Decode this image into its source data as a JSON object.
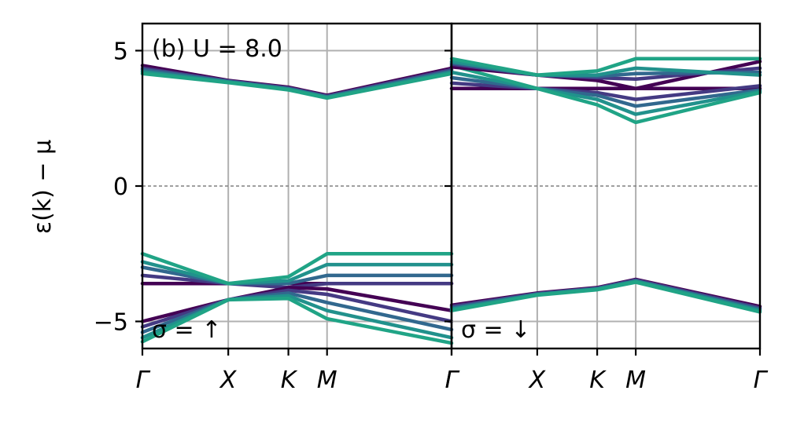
{
  "chart_data": {
    "type": "line",
    "ylabel": "ε(k) − μ",
    "ylim": [
      -6,
      6
    ],
    "yticks": [
      {
        "value": 5,
        "label": "5"
      },
      {
        "value": 0,
        "label": "0"
      },
      {
        "value": -5,
        "label": "−5"
      }
    ],
    "xticks": [
      {
        "value": 0,
        "label": "Γ"
      },
      {
        "value": 1,
        "label": "X"
      },
      {
        "value": 1.7,
        "label": "K"
      },
      {
        "value": 2.15,
        "label": "M"
      },
      {
        "value": 3.6,
        "label": "Γ"
      }
    ],
    "xlim": [
      0,
      3.6
    ],
    "grid": true,
    "zero_line": true,
    "colors": [
      "#440154",
      "#443a83",
      "#31688e",
      "#21918c",
      "#20a486"
    ],
    "panels": [
      {
        "id": "spin-up",
        "title": "(b) U = 8.0",
        "annotation": "σ = ↑",
        "series": [
          {
            "x": [
              0,
              1,
              1.7,
              2.15,
              3.6
            ],
            "y": [
              4.45,
              3.9,
              3.65,
              3.35,
              4.35
            ]
          },
          {
            "x": [
              0,
              1,
              1.7,
              2.15,
              3.6
            ],
            "y": [
              4.35,
              3.88,
              3.62,
              3.32,
              4.3
            ]
          },
          {
            "x": [
              0,
              1,
              1.7,
              2.15,
              3.6
            ],
            "y": [
              4.3,
              3.86,
              3.6,
              3.3,
              4.25
            ]
          },
          {
            "x": [
              0,
              1,
              1.7,
              2.15,
              3.6
            ],
            "y": [
              4.22,
              3.84,
              3.57,
              3.27,
              4.2
            ]
          },
          {
            "x": [
              0,
              1,
              1.7,
              2.15,
              3.6
            ],
            "y": [
              4.15,
              3.82,
              3.55,
              3.25,
              4.15
            ]
          },
          {
            "x": [
              0,
              1,
              1.7,
              2.15,
              3.6
            ],
            "y": [
              -3.6,
              -3.6,
              -3.6,
              -3.6,
              -3.6
            ]
          },
          {
            "x": [
              0,
              1,
              1.7,
              2.15,
              3.6
            ],
            "y": [
              -3.3,
              -3.6,
              -3.75,
              -3.6,
              -3.6
            ]
          },
          {
            "x": [
              0,
              1,
              1.7,
              2.15,
              3.6
            ],
            "y": [
              -3.0,
              -3.6,
              -3.6,
              -3.3,
              -3.3
            ]
          },
          {
            "x": [
              0,
              1,
              1.7,
              2.15,
              3.6
            ],
            "y": [
              -2.8,
              -3.6,
              -3.5,
              -2.9,
              -2.9
            ]
          },
          {
            "x": [
              0,
              1,
              1.7,
              2.15,
              3.6
            ],
            "y": [
              -2.5,
              -3.6,
              -3.35,
              -2.5,
              -2.5
            ]
          },
          {
            "x": [
              0,
              1,
              1.7,
              2.15,
              3.6
            ],
            "y": [
              -5.0,
              -4.2,
              -3.75,
              -3.8,
              -4.6
            ]
          },
          {
            "x": [
              0,
              1,
              1.7,
              2.15,
              3.6
            ],
            "y": [
              -5.2,
              -4.2,
              -3.85,
              -4.0,
              -5.0
            ]
          },
          {
            "x": [
              0,
              1,
              1.7,
              2.15,
              3.6
            ],
            "y": [
              -5.4,
              -4.2,
              -3.95,
              -4.3,
              -5.3
            ]
          },
          {
            "x": [
              0,
              1,
              1.7,
              2.15,
              3.6
            ],
            "y": [
              -5.6,
              -4.2,
              -4.05,
              -4.6,
              -5.6
            ]
          },
          {
            "x": [
              0,
              1,
              1.7,
              2.15,
              3.6
            ],
            "y": [
              -5.75,
              -4.2,
              -4.15,
              -4.9,
              -5.8
            ]
          }
        ]
      },
      {
        "id": "spin-down",
        "title": "",
        "annotation": "σ = ↓",
        "series": [
          {
            "x": [
              0,
              1,
              1.7,
              2.15,
              3.6
            ],
            "y": [
              3.6,
              3.6,
              3.6,
              3.6,
              3.6
            ]
          },
          {
            "x": [
              0,
              1,
              1.7,
              2.15,
              3.6
            ],
            "y": [
              3.8,
              3.6,
              3.45,
              3.2,
              3.7
            ]
          },
          {
            "x": [
              0,
              1,
              1.7,
              2.15,
              3.6
            ],
            "y": [
              4.0,
              3.6,
              3.35,
              2.95,
              3.55
            ]
          },
          {
            "x": [
              0,
              1,
              1.7,
              2.15,
              3.6
            ],
            "y": [
              4.2,
              3.6,
              3.2,
              2.65,
              3.5
            ]
          },
          {
            "x": [
              0,
              1,
              1.7,
              2.15,
              3.6
            ],
            "y": [
              4.45,
              3.6,
              3.0,
              2.35,
              3.45
            ]
          },
          {
            "x": [
              0,
              1,
              1.7,
              2.15,
              3.6
            ],
            "y": [
              4.4,
              4.1,
              3.9,
              3.6,
              4.6
            ]
          },
          {
            "x": [
              0,
              1,
              1.7,
              2.15,
              3.6
            ],
            "y": [
              4.5,
              4.1,
              4.0,
              3.95,
              4.35
            ]
          },
          {
            "x": [
              0,
              1,
              1.7,
              2.15,
              3.6
            ],
            "y": [
              4.55,
              4.1,
              4.05,
              4.15,
              4.2
            ]
          },
          {
            "x": [
              0,
              1,
              1.7,
              2.15,
              3.6
            ],
            "y": [
              4.6,
              4.1,
              4.1,
              4.35,
              4.1
            ]
          },
          {
            "x": [
              0,
              1,
              1.7,
              2.15,
              3.6
            ],
            "y": [
              4.7,
              4.1,
              4.25,
              4.7,
              4.7
            ]
          },
          {
            "x": [
              0,
              1,
              1.7,
              2.15,
              3.6
            ],
            "y": [
              -4.4,
              -3.95,
              -3.75,
              -3.45,
              -4.45
            ]
          },
          {
            "x": [
              0,
              1,
              1.7,
              2.15,
              3.6
            ],
            "y": [
              -4.45,
              -3.97,
              -3.77,
              -3.47,
              -4.5
            ]
          },
          {
            "x": [
              0,
              1,
              1.7,
              2.15,
              3.6
            ],
            "y": [
              -4.5,
              -3.99,
              -3.79,
              -3.5,
              -4.55
            ]
          },
          {
            "x": [
              0,
              1,
              1.7,
              2.15,
              3.6
            ],
            "y": [
              -4.55,
              -4.01,
              -3.81,
              -3.52,
              -4.6
            ]
          },
          {
            "x": [
              0,
              1,
              1.7,
              2.15,
              3.6
            ],
            "y": [
              -4.6,
              -4.03,
              -3.83,
              -3.55,
              -4.65
            ]
          }
        ]
      }
    ]
  }
}
